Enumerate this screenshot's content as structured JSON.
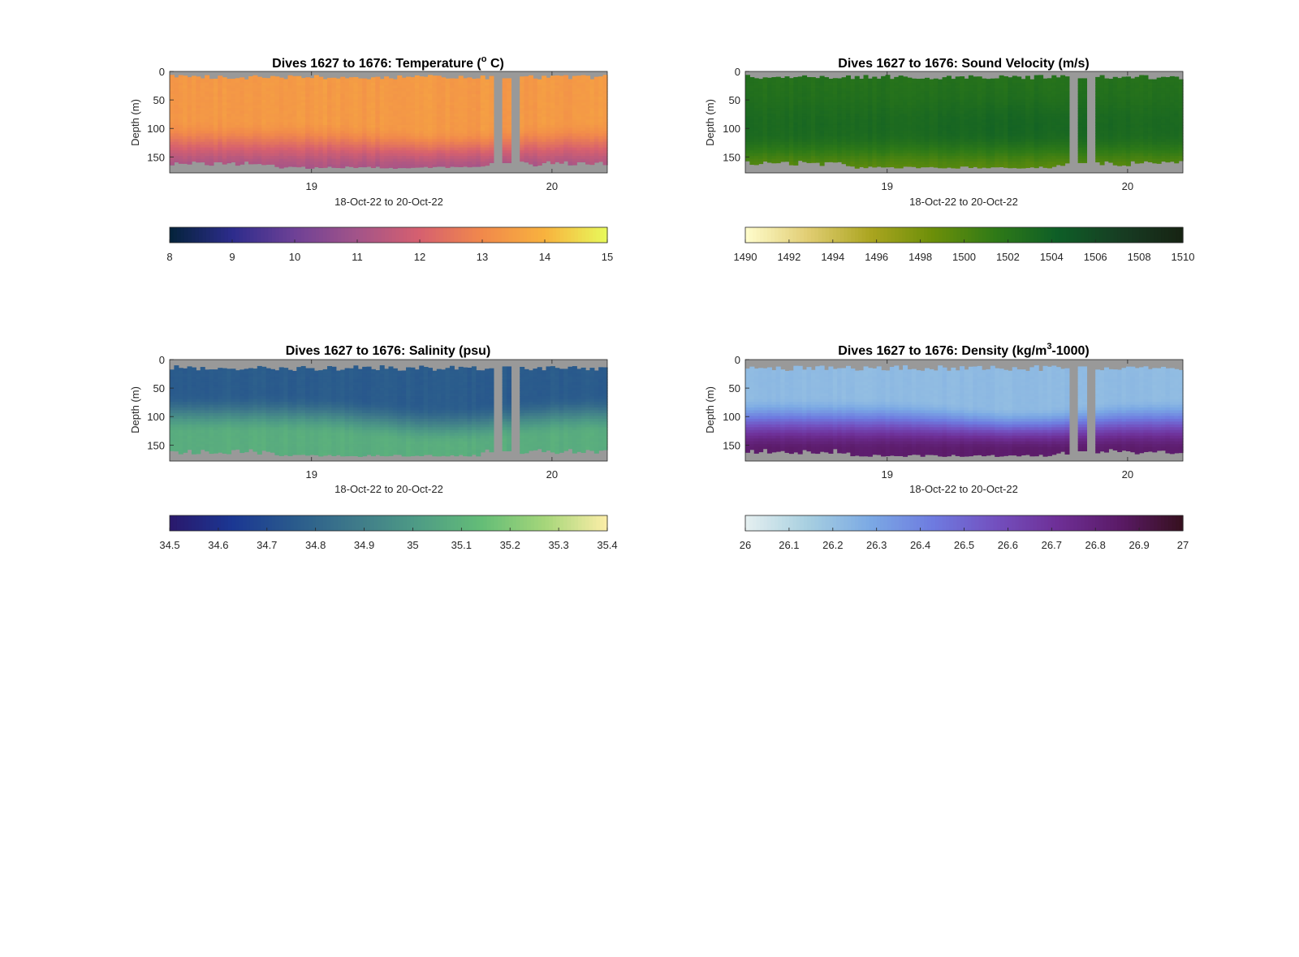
{
  "chart_data": [
    {
      "type": "heatmap",
      "title": "Dives 1627 to 1676: Temperature (",
      "title_sup": "o",
      "title_end": " C)",
      "xlabel": "18-Oct-22 to 20-Oct-22",
      "ylabel": "Depth (m)",
      "x_ticks": [
        "19",
        "20"
      ],
      "x_tick_values": [
        19,
        20
      ],
      "xlim": [
        18.41,
        20.23
      ],
      "y_ticks": [
        "0",
        "50",
        "100",
        "150"
      ],
      "y_tick_values": [
        0,
        50,
        100,
        150
      ],
      "ylim": [
        0,
        178
      ],
      "gap_days": [
        19.76,
        19.79,
        19.83,
        19.86
      ],
      "colormap": "thermal",
      "colormap_stops": [
        "#04233a",
        "#2d2c8c",
        "#6e4196",
        "#a35489",
        "#d6606f",
        "#f1894b",
        "#f8b23e",
        "#e8fa5b"
      ],
      "colorbar_ticks": [
        "8",
        "9",
        "10",
        "11",
        "12",
        "13",
        "14",
        "15"
      ],
      "colorbar_range": [
        8,
        15
      ],
      "profile": {
        "surface": 13.4,
        "thermocline_start": 85,
        "bottom": 11.1
      },
      "legend_position": "below"
    },
    {
      "type": "heatmap",
      "title": "Dives 1627 to 1676: Sound Velocity (m/s)",
      "xlabel": "18-Oct-22 to 20-Oct-22",
      "ylabel": "Depth (m)",
      "x_ticks": [
        "19",
        "20"
      ],
      "x_tick_values": [
        19,
        20
      ],
      "xlim": [
        18.41,
        20.23
      ],
      "y_ticks": [
        "0",
        "50",
        "100",
        "150"
      ],
      "y_tick_values": [
        0,
        50,
        100,
        150
      ],
      "ylim": [
        0,
        178
      ],
      "gap_days": [
        19.76,
        19.79,
        19.83,
        19.86
      ],
      "colormap": "speed",
      "colormap_stops": [
        "#fffdcd",
        "#e1cd73",
        "#aba520",
        "#6c8f09",
        "#2f7a17",
        "#0e5e27",
        "#173d23",
        "#172313"
      ],
      "colorbar_ticks": [
        "1490",
        "1492",
        "1494",
        "1496",
        "1498",
        "1500",
        "1502",
        "1504",
        "1506",
        "1508",
        "1510"
      ],
      "colorbar_range": [
        1490,
        1510
      ],
      "profile": {
        "surface": 1502.3,
        "mid": 1503.4,
        "bottom": 1499.2
      },
      "legend_position": "below"
    },
    {
      "type": "heatmap",
      "title": "Dives 1627 to 1676: Salinity (psu)",
      "xlabel": "18-Oct-22 to 20-Oct-22",
      "ylabel": "Depth (m)",
      "x_ticks": [
        "19",
        "20"
      ],
      "x_tick_values": [
        19,
        20
      ],
      "xlim": [
        18.41,
        20.23
      ],
      "y_ticks": [
        "0",
        "50",
        "100",
        "150"
      ],
      "y_tick_values": [
        0,
        50,
        100,
        150
      ],
      "ylim": [
        0,
        178
      ],
      "gap_days": [
        19.76,
        19.79,
        19.83,
        19.86
      ],
      "colormap": "haline",
      "colormap_stops": [
        "#2a186c",
        "#1b3793",
        "#2a5b8c",
        "#3f7b8a",
        "#4f9d85",
        "#64bd77",
        "#a5d67a",
        "#fdeea8"
      ],
      "colorbar_ticks": [
        "34.5",
        "34.6",
        "34.7",
        "34.8",
        "34.9",
        "35",
        "35.1",
        "35.2",
        "35.3",
        "35.4"
      ],
      "colorbar_range": [
        34.5,
        35.4
      ],
      "profile": {
        "surface": 34.76,
        "halocline_start": 70,
        "bottom": 35.08
      },
      "legend_position": "below"
    },
    {
      "type": "heatmap",
      "title": "Dives 1627 to 1676: Density (kg/m",
      "title_sup": "3",
      "title_end": "-1000)",
      "xlabel": "18-Oct-22 to 20-Oct-22",
      "ylabel": "Depth (m)",
      "x_ticks": [
        "19",
        "20"
      ],
      "x_tick_values": [
        19,
        20
      ],
      "xlim": [
        18.41,
        20.23
      ],
      "y_ticks": [
        "0",
        "50",
        "100",
        "150"
      ],
      "y_tick_values": [
        0,
        50,
        100,
        150
      ],
      "ylim": [
        0,
        178
      ],
      "gap_days": [
        19.76,
        19.79,
        19.83,
        19.86
      ],
      "colormap": "dense",
      "colormap_stops": [
        "#e6f0f0",
        "#a7cfe0",
        "#7ba9e4",
        "#6e7be0",
        "#7350bf",
        "#6e2f96",
        "#5a1a66",
        "#36101e"
      ],
      "colorbar_ticks": [
        "26",
        "26.1",
        "26.2",
        "26.3",
        "26.4",
        "26.5",
        "26.6",
        "26.7",
        "26.8",
        "26.9",
        "27"
      ],
      "colorbar_range": [
        26,
        27
      ],
      "profile": {
        "surface": 26.22,
        "pycnocline_start": 80,
        "bottom": 26.84
      },
      "legend_position": "below"
    }
  ]
}
